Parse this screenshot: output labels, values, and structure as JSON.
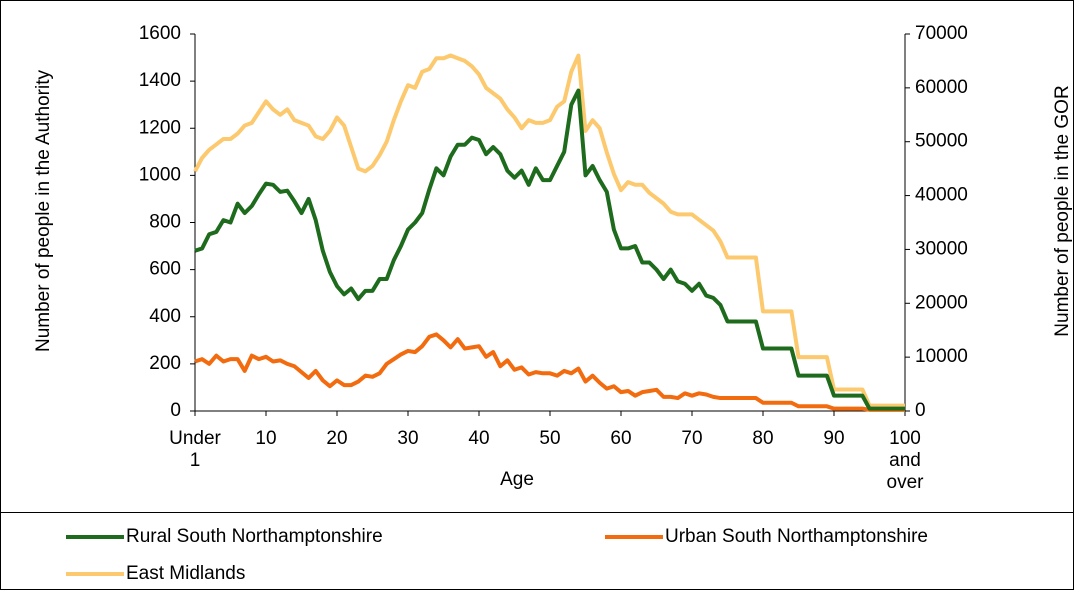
{
  "chart_data": {
    "type": "line",
    "x_label": "Age",
    "y_label": "Number of people in the Authority",
    "y2_label": "Number of people in the GOR",
    "categories": [
      "Under 1",
      null,
      null,
      null,
      null,
      null,
      null,
      null,
      null,
      null,
      "10",
      null,
      null,
      null,
      null,
      null,
      null,
      null,
      null,
      null,
      "20",
      null,
      null,
      null,
      null,
      null,
      null,
      null,
      null,
      null,
      "30",
      null,
      null,
      null,
      null,
      null,
      null,
      null,
      null,
      null,
      "40",
      null,
      null,
      null,
      null,
      null,
      null,
      null,
      null,
      null,
      "50",
      null,
      null,
      null,
      null,
      null,
      null,
      null,
      null,
      null,
      "60",
      null,
      null,
      null,
      null,
      null,
      null,
      null,
      null,
      null,
      "70",
      null,
      null,
      null,
      null,
      null,
      null,
      null,
      null,
      null,
      "80",
      null,
      null,
      null,
      null,
      null,
      null,
      null,
      null,
      null,
      "90",
      null,
      null,
      null,
      null,
      null,
      null,
      null,
      null,
      null,
      "100 and over"
    ],
    "ylim": [
      0,
      1600
    ],
    "yticks": [
      0,
      200,
      400,
      600,
      800,
      1000,
      1200,
      1400,
      1600
    ],
    "y2lim": [
      0,
      70000
    ],
    "y2ticks": [
      0,
      10000,
      20000,
      30000,
      40000,
      50000,
      60000,
      70000
    ],
    "legend": "bottom",
    "series": [
      {
        "name": "Rural South Northamptonshire",
        "color": "#1e6b1e",
        "values": [
          680,
          690,
          750,
          760,
          810,
          800,
          880,
          840,
          870,
          920,
          965,
          960,
          930,
          935,
          890,
          840,
          900,
          810,
          680,
          590,
          530,
          495,
          520,
          475,
          510,
          510,
          560,
          560,
          640,
          700,
          770,
          800,
          840,
          940,
          1030,
          1000,
          1080,
          1130,
          1130,
          1160,
          1150,
          1090,
          1120,
          1090,
          1020,
          990,
          1020,
          960,
          1030,
          980,
          980,
          1040,
          1100,
          1300,
          1360,
          1000,
          1040,
          980,
          930,
          770,
          690,
          690,
          700,
          630,
          630,
          600,
          560,
          600,
          550,
          540,
          510,
          540,
          490,
          480,
          450,
          380,
          380,
          380,
          380,
          380,
          265,
          265,
          265,
          265,
          265,
          150,
          150,
          150,
          150,
          150,
          65,
          65,
          65,
          65,
          65,
          10,
          10,
          10,
          10,
          10,
          10
        ]
      },
      {
        "name": "Urban South Northamptonshire",
        "color": "#f26b0f",
        "values": [
          210,
          220,
          200,
          235,
          210,
          220,
          220,
          170,
          235,
          220,
          230,
          210,
          215,
          200,
          190,
          165,
          140,
          170,
          130,
          105,
          130,
          110,
          110,
          125,
          150,
          145,
          160,
          200,
          220,
          240,
          255,
          250,
          275,
          315,
          325,
          300,
          270,
          305,
          265,
          270,
          275,
          230,
          250,
          190,
          215,
          175,
          185,
          155,
          165,
          160,
          160,
          150,
          170,
          160,
          180,
          125,
          150,
          120,
          95,
          105,
          80,
          85,
          65,
          80,
          85,
          90,
          60,
          60,
          55,
          75,
          65,
          75,
          70,
          60,
          55,
          55,
          55,
          55,
          55,
          55,
          35,
          35,
          35,
          35,
          35,
          20,
          20,
          20,
          20,
          20,
          10,
          10,
          10,
          10,
          10,
          5,
          5,
          5,
          5,
          5,
          5
        ]
      },
      {
        "name": "East Midlands",
        "color": "#fcc96e",
        "axis": "y2",
        "values": [
          44500,
          47000,
          48500,
          49500,
          50500,
          50500,
          51500,
          53000,
          53500,
          55500,
          57500,
          56000,
          55000,
          56000,
          54000,
          53500,
          53000,
          51000,
          50500,
          52000,
          54500,
          53000,
          49000,
          45000,
          44500,
          45500,
          47500,
          50000,
          54000,
          57500,
          60500,
          60000,
          63000,
          63500,
          65500,
          65500,
          66000,
          65500,
          65000,
          64000,
          62500,
          60000,
          59000,
          58000,
          56000,
          54500,
          52500,
          54000,
          53500,
          53500,
          54000,
          56500,
          57500,
          63000,
          66000,
          52000,
          54000,
          52500,
          48000,
          44000,
          41000,
          42500,
          42000,
          42000,
          40500,
          39500,
          38500,
          37000,
          36500,
          36500,
          36500,
          35500,
          34500,
          33500,
          31500,
          28500,
          28500,
          28500,
          28500,
          28500,
          18500,
          18500,
          18500,
          18500,
          18500,
          10000,
          10000,
          10000,
          10000,
          10000,
          4000,
          4000,
          4000,
          4000,
          4000,
          1000,
          1000,
          1000,
          1000,
          1000,
          1000
        ]
      }
    ]
  }
}
